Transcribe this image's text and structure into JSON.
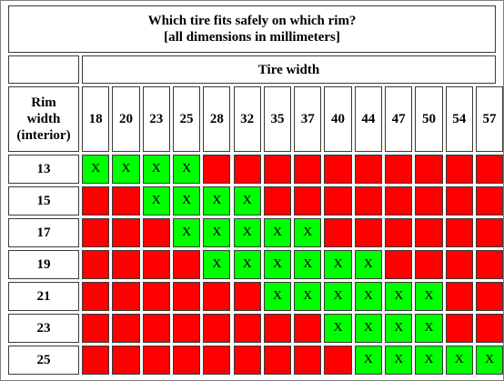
{
  "title": {
    "line1": "Which tire fits safely on which rim?",
    "line2": "[all dimensions in millimeters]"
  },
  "tire_width_label": "Tire width",
  "rim_header": [
    "Rim",
    "width",
    "(interior)"
  ],
  "tire_widths": [
    "18",
    "20",
    "23",
    "25",
    "28",
    "32",
    "35",
    "37",
    "40",
    "44",
    "47",
    "50",
    "54",
    "57"
  ],
  "mark": "X",
  "colors": {
    "fits": "#00ff00",
    "no_fit": "#ff0000"
  },
  "rows": [
    {
      "rim": "13",
      "fits": [
        1,
        1,
        1,
        1,
        0,
        0,
        0,
        0,
        0,
        0,
        0,
        0,
        0,
        0
      ]
    },
    {
      "rim": "15",
      "fits": [
        0,
        0,
        1,
        1,
        1,
        1,
        0,
        0,
        0,
        0,
        0,
        0,
        0,
        0
      ]
    },
    {
      "rim": "17",
      "fits": [
        0,
        0,
        0,
        1,
        1,
        1,
        1,
        1,
        0,
        0,
        0,
        0,
        0,
        0
      ]
    },
    {
      "rim": "19",
      "fits": [
        0,
        0,
        0,
        0,
        1,
        1,
        1,
        1,
        1,
        1,
        0,
        0,
        0,
        0
      ]
    },
    {
      "rim": "21",
      "fits": [
        0,
        0,
        0,
        0,
        0,
        0,
        1,
        1,
        1,
        1,
        1,
        1,
        0,
        0
      ]
    },
    {
      "rim": "23",
      "fits": [
        0,
        0,
        0,
        0,
        0,
        0,
        0,
        0,
        1,
        1,
        1,
        1,
        0,
        0
      ]
    },
    {
      "rim": "25",
      "fits": [
        0,
        0,
        0,
        0,
        0,
        0,
        0,
        0,
        0,
        1,
        1,
        1,
        1,
        1
      ]
    }
  ]
}
